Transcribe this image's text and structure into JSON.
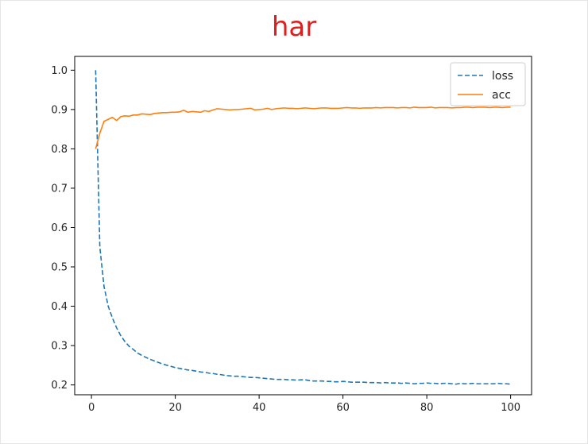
{
  "colors": {
    "title": "#e01e1e",
    "loss": "#1f77b4",
    "acc": "#ff7f0e",
    "axis": "#000000",
    "text": "#222222",
    "legend_border": "#cccccc"
  },
  "chart_data": {
    "type": "line",
    "title": "har",
    "xlabel": "",
    "ylabel": "",
    "xlim": [
      -4,
      105
    ],
    "ylim": [
      0.175,
      1.035
    ],
    "x_ticks": [
      0,
      20,
      40,
      60,
      80,
      100
    ],
    "y_ticks": [
      0.2,
      0.3,
      0.4,
      0.5,
      0.6,
      0.7,
      0.8,
      0.9,
      1.0
    ],
    "grid": false,
    "legend": {
      "position": "upper right",
      "entries": [
        "loss",
        "acc"
      ]
    },
    "x": [
      1,
      2,
      3,
      4,
      5,
      6,
      7,
      8,
      9,
      10,
      11,
      12,
      13,
      14,
      15,
      16,
      17,
      18,
      19,
      20,
      21,
      22,
      23,
      24,
      25,
      26,
      27,
      28,
      29,
      30,
      31,
      32,
      33,
      34,
      35,
      36,
      37,
      38,
      39,
      40,
      41,
      42,
      43,
      44,
      45,
      46,
      47,
      48,
      49,
      50,
      51,
      52,
      53,
      54,
      55,
      56,
      57,
      58,
      59,
      60,
      61,
      62,
      63,
      64,
      65,
      66,
      67,
      68,
      69,
      70,
      71,
      72,
      73,
      74,
      75,
      76,
      77,
      78,
      79,
      80,
      81,
      82,
      83,
      84,
      85,
      86,
      87,
      88,
      89,
      90,
      91,
      92,
      93,
      94,
      95,
      96,
      97,
      98,
      99,
      100
    ],
    "series": [
      {
        "name": "loss",
        "style": "dashed",
        "values": [
          1.0,
          0.55,
          0.45,
          0.4,
          0.37,
          0.345,
          0.325,
          0.31,
          0.298,
          0.29,
          0.281,
          0.275,
          0.27,
          0.265,
          0.261,
          0.257,
          0.253,
          0.25,
          0.247,
          0.244,
          0.242,
          0.24,
          0.238,
          0.237,
          0.235,
          0.233,
          0.232,
          0.23,
          0.229,
          0.227,
          0.226,
          0.224,
          0.223,
          0.222,
          0.222,
          0.221,
          0.22,
          0.219,
          0.219,
          0.218,
          0.217,
          0.216,
          0.215,
          0.214,
          0.214,
          0.214,
          0.213,
          0.213,
          0.212,
          0.213,
          0.213,
          0.211,
          0.21,
          0.21,
          0.21,
          0.209,
          0.209,
          0.208,
          0.208,
          0.209,
          0.208,
          0.207,
          0.207,
          0.207,
          0.207,
          0.206,
          0.206,
          0.206,
          0.205,
          0.206,
          0.205,
          0.205,
          0.205,
          0.204,
          0.205,
          0.204,
          0.203,
          0.204,
          0.204,
          0.205,
          0.204,
          0.204,
          0.203,
          0.204,
          0.204,
          0.203,
          0.202,
          0.204,
          0.203,
          0.203,
          0.204,
          0.203,
          0.203,
          0.203,
          0.203,
          0.203,
          0.204,
          0.203,
          0.203,
          0.202
        ]
      },
      {
        "name": "acc",
        "style": "solid",
        "values": [
          0.8,
          0.84,
          0.87,
          0.875,
          0.88,
          0.872,
          0.882,
          0.884,
          0.883,
          0.886,
          0.886,
          0.889,
          0.888,
          0.887,
          0.89,
          0.891,
          0.892,
          0.892,
          0.893,
          0.893,
          0.894,
          0.898,
          0.893,
          0.895,
          0.894,
          0.893,
          0.897,
          0.895,
          0.899,
          0.902,
          0.901,
          0.9,
          0.899,
          0.9,
          0.9,
          0.901,
          0.902,
          0.903,
          0.899,
          0.9,
          0.901,
          0.903,
          0.9,
          0.902,
          0.903,
          0.904,
          0.903,
          0.903,
          0.902,
          0.903,
          0.904,
          0.903,
          0.902,
          0.903,
          0.904,
          0.904,
          0.903,
          0.903,
          0.903,
          0.904,
          0.905,
          0.904,
          0.904,
          0.903,
          0.904,
          0.904,
          0.904,
          0.905,
          0.904,
          0.905,
          0.905,
          0.905,
          0.904,
          0.905,
          0.905,
          0.904,
          0.906,
          0.905,
          0.905,
          0.905,
          0.906,
          0.904,
          0.905,
          0.905,
          0.905,
          0.904,
          0.905,
          0.905,
          0.906,
          0.906,
          0.905,
          0.906,
          0.906,
          0.906,
          0.905,
          0.906,
          0.906,
          0.905,
          0.906,
          0.906
        ]
      }
    ]
  }
}
